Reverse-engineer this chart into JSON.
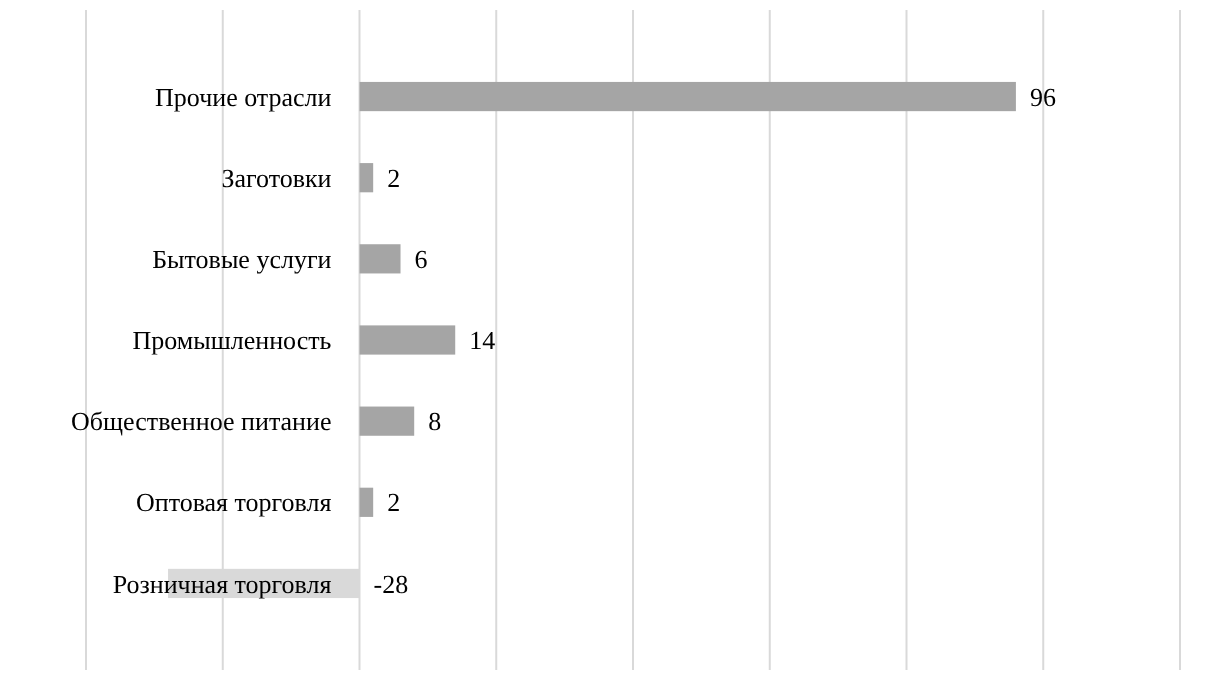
{
  "chart_data": {
    "type": "bar",
    "orientation": "horizontal",
    "categories": [
      "Прочие отрасли",
      "Заготовки",
      "Бытовые услуги",
      "Промышленность",
      "Общественное питание",
      "Оптовая торговля",
      "Розничная торговля"
    ],
    "values": [
      96,
      2,
      6,
      14,
      8,
      2,
      -28
    ],
    "colors": [
      "#a5a5a5",
      "#a5a5a5",
      "#a5a5a5",
      "#a5a5a5",
      "#a5a5a5",
      "#a5a5a5",
      "#d9d9d9"
    ],
    "xlim": [
      -40,
      120
    ],
    "xticks": [
      {
        "value": -40,
        "label": null
      },
      {
        "value": -20,
        "label": null
      },
      {
        "value": 0,
        "label": null
      },
      {
        "value": 20,
        "label": null
      },
      {
        "value": 40,
        "label": null
      },
      {
        "value": 60,
        "label": null
      },
      {
        "value": 80,
        "label": null
      },
      {
        "value": 100,
        "label": null
      },
      {
        "value": 120,
        "label": null
      }
    ],
    "tick_labels": "y",
    "grid": "x",
    "data_labels": true
  }
}
